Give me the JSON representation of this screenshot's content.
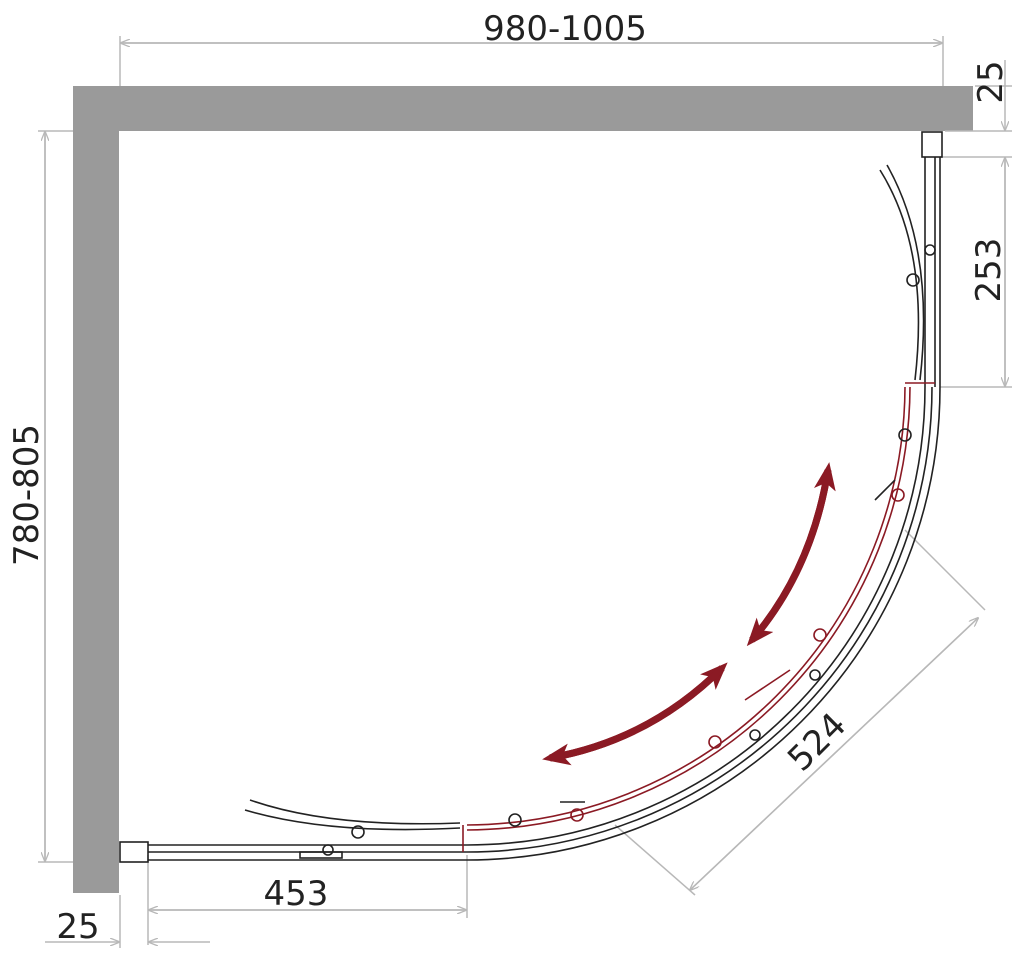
{
  "dimensions": {
    "top_width": "980-1005",
    "top_wall": "25",
    "fixed_right": "253",
    "left_depth": "780-805",
    "door": "524",
    "fixed_bottom": "453",
    "left_wall": "25"
  }
}
